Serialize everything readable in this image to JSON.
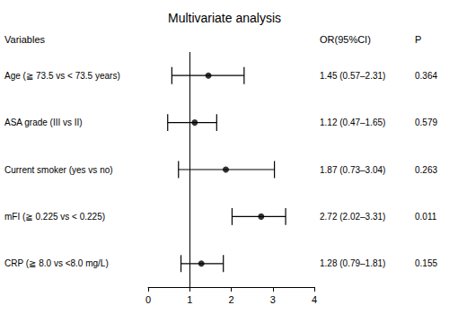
{
  "chart_data": {
    "type": "forest",
    "title": "Multivariate analysis",
    "header_var": "Variables",
    "header_ci": "OR(95%CI)",
    "header_p": "P",
    "categories": [
      "Age (≧ 73.5 vs < 73.5 years)",
      "ASA grade (III vs II)",
      "Current smoker (yes vs no)",
      "mFI (≧ 0.225 vs < 0.225)",
      "CRP (≧ 8.0 vs <8.0 mg/L)"
    ],
    "values": [
      1.45,
      1.12,
      1.87,
      2.72,
      1.28
    ],
    "ci_low": [
      0.57,
      0.47,
      0.73,
      2.02,
      0.79
    ],
    "ci_high": [
      2.31,
      1.65,
      3.04,
      3.31,
      1.81
    ],
    "ci_labels": [
      "1.45 (0.57–2.31)",
      "1.12 (0.47–1.65)",
      "1.87 (0.73–3.04)",
      "2.72 (2.02–3.31)",
      "1.28 (0.79–1.81)"
    ],
    "pvalues": [
      "0.364",
      "0.579",
      "0.263",
      "0.011",
      "0.155"
    ],
    "ref_line": 1,
    "xlim": [
      0,
      4
    ],
    "xticks": [
      0,
      1,
      2,
      3,
      4
    ],
    "color": "#000000",
    "grid": false,
    "tick_labels": "x"
  }
}
